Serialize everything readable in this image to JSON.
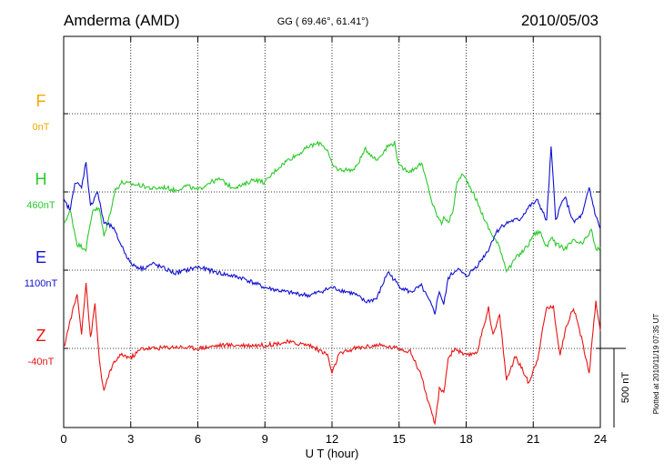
{
  "header": {
    "station": "Amderma (AMD)",
    "coords": "GG ( 69.46°,  61.41°)",
    "date": "2010/05/03"
  },
  "footer": {
    "plotted_note": "Plotted at 2010/11/19 07:35 UT",
    "scale_label": "500 nT"
  },
  "colors": {
    "F": "#f7a800",
    "H": "#2cc92c",
    "E": "#1010d0",
    "Z": "#e81414",
    "axis": "#000000",
    "grid": "#000000"
  },
  "chart_data": {
    "type": "line",
    "title": "Amderma (AMD)",
    "xlabel": "U T (hour)",
    "ylabel": "",
    "xlim": [
      0,
      24
    ],
    "x_ticks": [
      0,
      3,
      6,
      9,
      12,
      15,
      18,
      21,
      24
    ],
    "x_tick_labels": [
      "0",
      "3",
      "6",
      "9",
      "12",
      "15",
      "18",
      "21",
      "24"
    ],
    "scale_bar_nT": 500,
    "grid": true,
    "series": [
      {
        "name": "F",
        "baseline_label": "0nT",
        "x": [],
        "values": []
      },
      {
        "name": "H",
        "baseline_label": "460nT",
        "x": [
          0,
          0.3,
          0.6,
          1.0,
          1.3,
          1.6,
          1.8,
          2.0,
          2.3,
          2.6,
          3.0,
          3.5,
          4.0,
          4.5,
          5.0,
          5.5,
          6.0,
          6.5,
          7.0,
          7.5,
          8.0,
          8.5,
          9.0,
          9.5,
          10.0,
          10.5,
          11.0,
          11.5,
          11.8,
          12.0,
          12.3,
          13.0,
          13.5,
          14.0,
          14.5,
          14.8,
          15.0,
          15.5,
          16.0,
          16.3,
          16.5,
          16.7,
          16.9,
          17.0,
          17.2,
          17.4,
          17.6,
          17.8,
          18.0,
          18.3,
          18.6,
          19.0,
          19.5,
          19.8,
          20.0,
          20.2,
          20.5,
          20.8,
          21.0,
          21.3,
          21.6,
          21.8,
          22.0,
          22.4,
          22.8,
          23.2,
          23.6,
          23.8,
          24.0
        ],
        "values": [
          -200,
          -120,
          -330,
          -360,
          -110,
          -110,
          -280,
          -180,
          10,
          60,
          50,
          40,
          20,
          30,
          10,
          40,
          10,
          60,
          80,
          30,
          40,
          80,
          60,
          140,
          200,
          240,
          290,
          310,
          260,
          170,
          140,
          140,
          270,
          200,
          290,
          310,
          160,
          130,
          180,
          30,
          -80,
          -150,
          -200,
          -150,
          -200,
          -120,
          60,
          110,
          80,
          0,
          -100,
          -230,
          -350,
          -490,
          -470,
          -420,
          -380,
          -330,
          -270,
          -250,
          -350,
          -280,
          -330,
          -360,
          -310,
          -330,
          -240,
          -370,
          -350
        ]
      },
      {
        "name": "E",
        "baseline_label": "1100nT",
        "x": [
          0,
          0.3,
          0.5,
          0.8,
          1.0,
          1.2,
          1.5,
          1.8,
          2.2,
          2.5,
          3.0,
          3.5,
          4.0,
          5.0,
          6.0,
          7.0,
          8.0,
          9.0,
          10.0,
          11.0,
          12.0,
          13.0,
          13.5,
          14.0,
          14.5,
          15.0,
          15.5,
          16.0,
          16.4,
          16.6,
          16.8,
          17.0,
          17.2,
          17.6,
          18.0,
          18.5,
          19.0,
          19.3,
          19.6,
          20.0,
          20.4,
          20.8,
          21.2,
          21.6,
          21.8,
          22.0,
          22.4,
          22.8,
          23.2,
          23.5,
          23.8,
          24.0
        ],
        "values": [
          440,
          380,
          560,
          520,
          690,
          400,
          500,
          300,
          270,
          180,
          40,
          10,
          40,
          -20,
          20,
          -20,
          -50,
          -110,
          -140,
          -160,
          -110,
          -150,
          -200,
          -180,
          -10,
          -100,
          -140,
          -100,
          -210,
          -270,
          -130,
          -220,
          -50,
          10,
          -40,
          30,
          130,
          230,
          280,
          310,
          320,
          400,
          440,
          310,
          780,
          320,
          470,
          300,
          350,
          520,
          340,
          260
        ]
      },
      {
        "name": "Z",
        "baseline_label": "-40nT",
        "x": [
          0,
          0.3,
          0.6,
          0.8,
          1.0,
          1.2,
          1.4,
          1.6,
          1.8,
          2.0,
          2.3,
          2.6,
          3.0,
          3.5,
          4.0,
          5.0,
          6.0,
          7.0,
          8.0,
          9.0,
          10.0,
          11.0,
          11.8,
          12.0,
          12.3,
          13.0,
          14.0,
          15.0,
          15.5,
          16.0,
          16.3,
          16.6,
          16.8,
          17.0,
          17.2,
          17.5,
          18.0,
          18.5,
          19.0,
          19.2,
          19.5,
          19.8,
          20.2,
          20.5,
          20.8,
          21.2,
          21.6,
          21.9,
          22.2,
          22.5,
          22.8,
          23.2,
          23.5,
          23.8,
          24.0
        ],
        "values": [
          0,
          180,
          340,
          100,
          420,
          60,
          280,
          -80,
          -280,
          -170,
          -80,
          -40,
          -60,
          0,
          0,
          10,
          0,
          20,
          20,
          20,
          40,
          20,
          -40,
          -160,
          -40,
          0,
          20,
          0,
          -20,
          -170,
          -340,
          -480,
          -260,
          -280,
          -60,
          0,
          -50,
          -20,
          260,
          80,
          210,
          -200,
          -50,
          -130,
          -220,
          -60,
          260,
          260,
          -40,
          150,
          260,
          40,
          -160,
          300,
          110
        ]
      }
    ]
  }
}
